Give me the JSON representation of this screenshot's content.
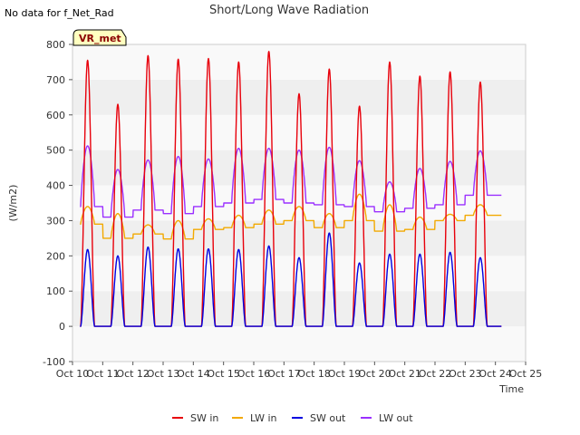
{
  "note": "No data for f_Net_Rad",
  "badge": "VR_met",
  "chart_data": {
    "type": "line",
    "title": "Short/Long Wave Radiation",
    "xlabel": "Time",
    "ylabel": "(W/m2)",
    "ylim": [
      -100,
      800
    ],
    "xlim": [
      10,
      25
    ],
    "yticks": [
      -100,
      0,
      100,
      200,
      300,
      400,
      500,
      600,
      700,
      800
    ],
    "xticks": [
      {
        "value": 10,
        "label": "Oct 10"
      },
      {
        "value": 11,
        "label": "Oct 11"
      },
      {
        "value": 12,
        "label": "Oct 12"
      },
      {
        "value": 13,
        "label": "Oct 13"
      },
      {
        "value": 14,
        "label": "Oct 14"
      },
      {
        "value": 15,
        "label": "Oct 15"
      },
      {
        "value": 16,
        "label": "Oct 16"
      },
      {
        "value": 17,
        "label": "Oct 17"
      },
      {
        "value": 18,
        "label": "Oct 18"
      },
      {
        "value": 19,
        "label": "Oct 19"
      },
      {
        "value": 20,
        "label": "Oct 20"
      },
      {
        "value": 21,
        "label": "Oct 21"
      },
      {
        "value": 22,
        "label": "Oct 22"
      },
      {
        "value": 23,
        "label": "Oct 23"
      },
      {
        "value": 24,
        "label": "Oct 24"
      },
      {
        "value": 25,
        "label": "Oct 25"
      }
    ],
    "day_peaks": {
      "days": [
        10,
        11,
        12,
        13,
        14,
        15,
        16,
        17,
        18,
        19,
        20,
        21,
        22,
        23
      ],
      "sw_in_peak": [
        755,
        630,
        768,
        758,
        760,
        750,
        780,
        660,
        730,
        625,
        750,
        710,
        722,
        693
      ],
      "sw_out_peak": [
        218,
        200,
        225,
        220,
        220,
        218,
        228,
        195,
        265,
        180,
        205,
        205,
        210,
        195
      ],
      "lw_in_day": [
        340,
        320,
        288,
        300,
        305,
        315,
        330,
        340,
        320,
        375,
        345,
        310,
        318,
        345
      ],
      "lw_in_night": [
        290,
        250,
        262,
        248,
        275,
        280,
        290,
        300,
        280,
        300,
        270,
        275,
        300,
        315
      ],
      "lw_out_day": [
        512,
        445,
        472,
        482,
        475,
        505,
        505,
        500,
        508,
        470,
        410,
        448,
        468,
        498
      ],
      "lw_out_night": [
        340,
        310,
        330,
        320,
        340,
        350,
        360,
        350,
        345,
        340,
        325,
        335,
        345,
        372
      ]
    },
    "series": [
      {
        "name": "SW in",
        "color": "#e8000b"
      },
      {
        "name": "LW in",
        "color": "#f2a900"
      },
      {
        "name": "SW out",
        "color": "#0000e0"
      },
      {
        "name": "LW out",
        "color": "#9b30ff"
      }
    ],
    "legend_position": "bottom-center",
    "grid": "alternating horizontal bands"
  }
}
